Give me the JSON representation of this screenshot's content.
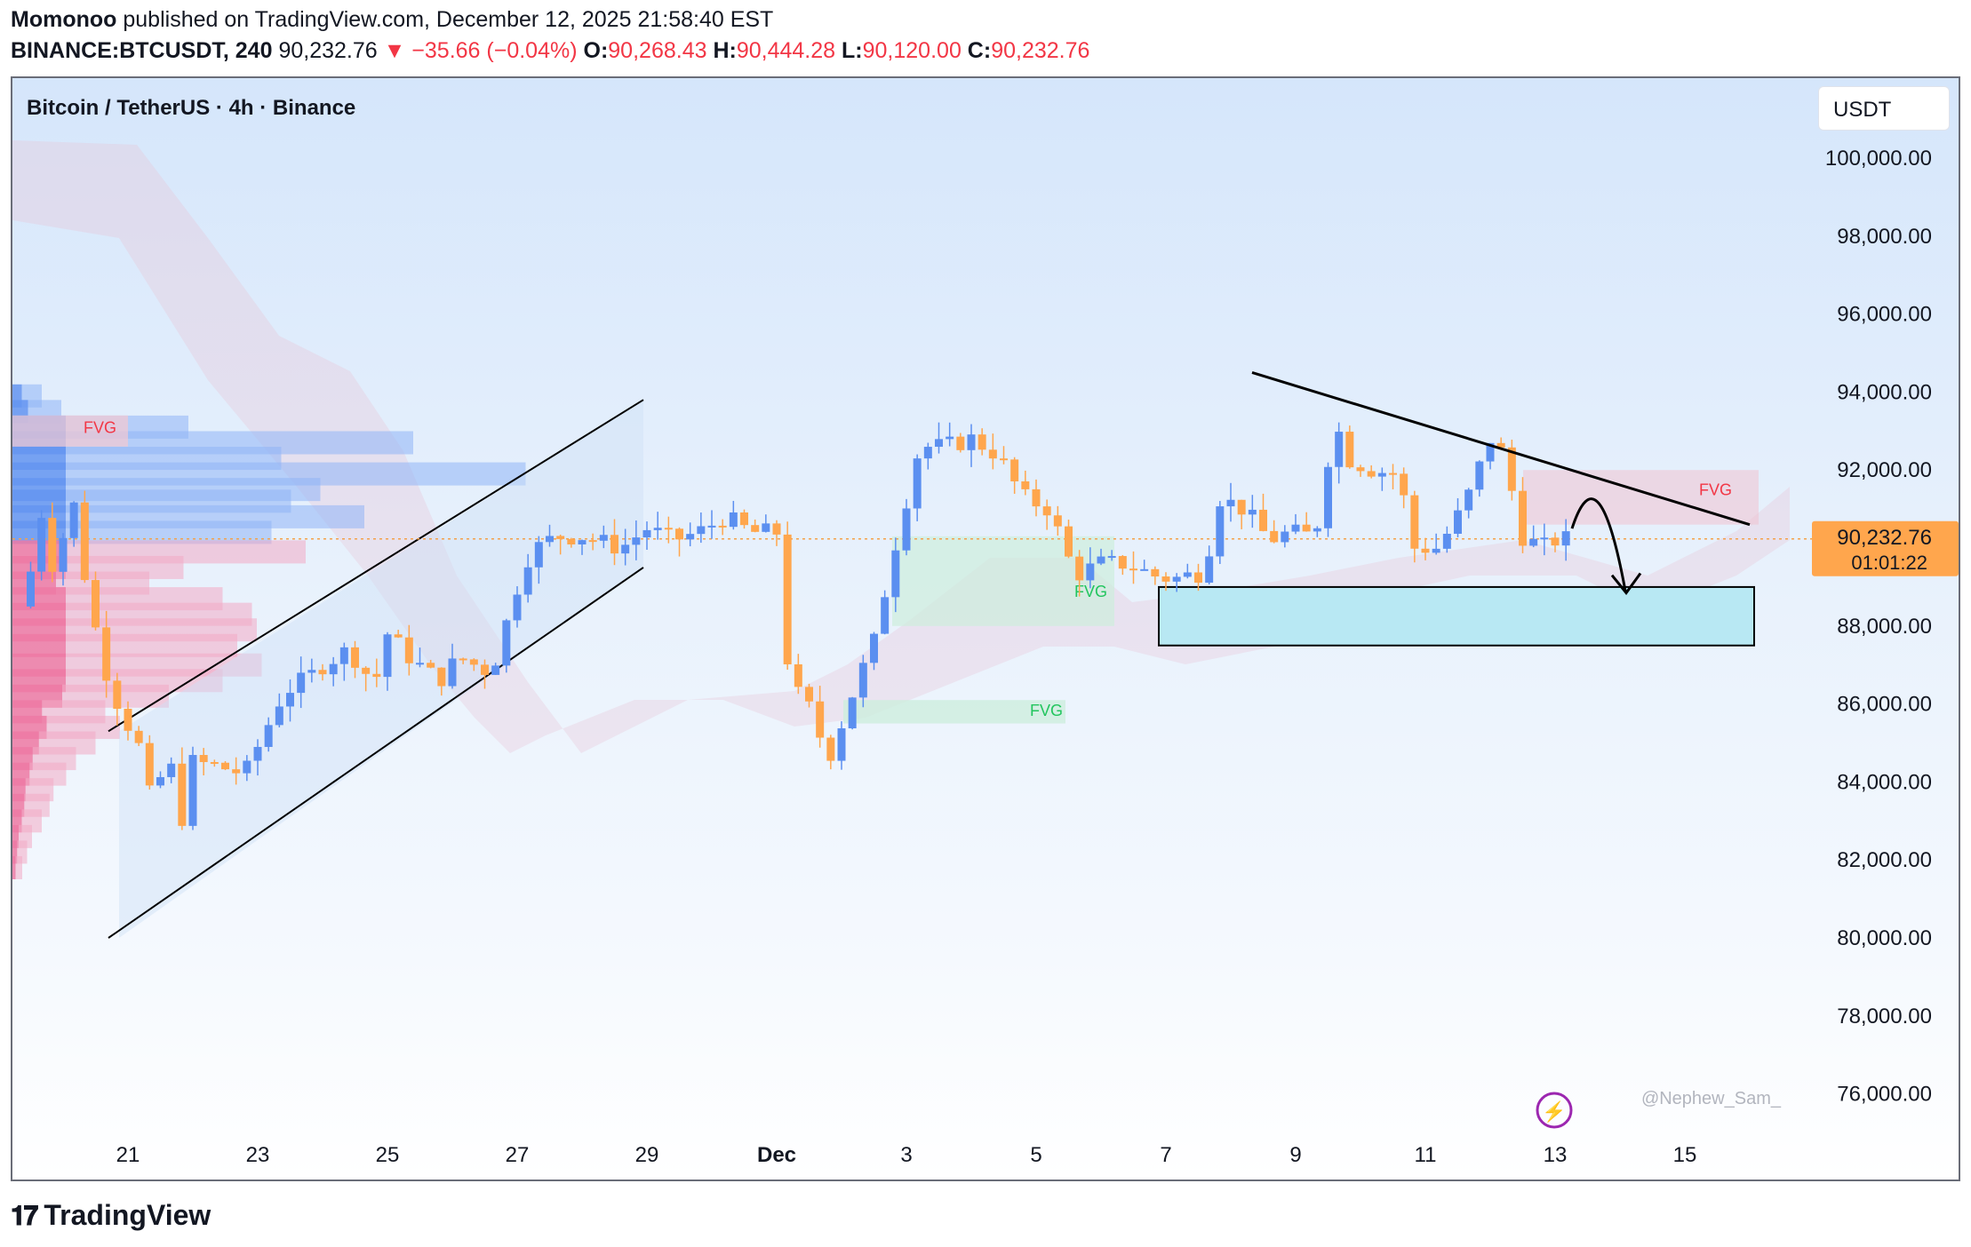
{
  "header": {
    "publisher": "Momonoo",
    "published_text": "published on TradingView.com, December 12, 2025 21:58:40 EST",
    "symbol": "BINANCE:BTCUSDT, 240",
    "price": "90,232.76",
    "change": "▼ −35.66 (−0.04%)",
    "o_label": "O:",
    "o_value": "90,268.43",
    "h_label": "H:",
    "h_value": "90,444.28",
    "l_label": "L:",
    "l_value": "90,120.00",
    "c_label": "C:",
    "c_value": "90,232.76"
  },
  "chart_title": "Bitcoin / TetherUS · 4h · Binance",
  "currency_button": "USDT",
  "watermark": "@Nephew_Sam_",
  "footer_logo": "TradingView",
  "price_tag": {
    "price": "90,232.76",
    "countdown": "01:01:22"
  },
  "colors": {
    "up": "#5b8ff0",
    "down": "#ffa64d",
    "price_tag": "#ffa64d",
    "fvg_red": "#f23645",
    "fvg_green": "#22c55e",
    "target_box": "#b8e8f3"
  },
  "chart_data": {
    "type": "candlestick",
    "title": "Bitcoin / TetherUS · 4h · Binance",
    "ylim": [
      75000,
      102500
    ],
    "y_ticks": [
      "100,000.00",
      "98,000.00",
      "96,000.00",
      "94,000.00",
      "92,000.00",
      "90,000.00",
      "88,000.00",
      "86,000.00",
      "84,000.00",
      "82,000.00",
      "80,000.00",
      "78,000.00",
      "76,000.00"
    ],
    "x_ticks": [
      {
        "label": "21",
        "day": 21
      },
      {
        "label": "23",
        "day": 23
      },
      {
        "label": "25",
        "day": 25
      },
      {
        "label": "27",
        "day": 27
      },
      {
        "label": "29",
        "day": 29
      },
      {
        "label": "Dec",
        "day": 31
      },
      {
        "label": "3",
        "day": 33
      },
      {
        "label": "5",
        "day": 35
      },
      {
        "label": "7",
        "day": 37
      },
      {
        "label": "9",
        "day": 39
      },
      {
        "label": "11",
        "day": 41
      },
      {
        "label": "13",
        "day": 43
      },
      {
        "label": "15",
        "day": 45
      }
    ],
    "last_price": 90232.76,
    "ohlc_anchors": [
      [
        19.4,
        88500
      ],
      [
        19.7,
        91200
      ],
      [
        19.9,
        88800
      ],
      [
        20.1,
        91800
      ],
      [
        20.4,
        88600
      ],
      [
        20.7,
        86600
      ],
      [
        20.9,
        85800
      ],
      [
        21.2,
        84800
      ],
      [
        21.4,
        83100
      ],
      [
        21.6,
        85100
      ],
      [
        21.8,
        82800
      ],
      [
        22.0,
        84500
      ],
      [
        22.4,
        84400
      ],
      [
        22.8,
        84200
      ],
      [
        23.0,
        84900
      ],
      [
        23.4,
        86300
      ],
      [
        23.8,
        86700
      ],
      [
        24.0,
        87000
      ],
      [
        24.4,
        87400
      ],
      [
        24.8,
        86500
      ],
      [
        25.0,
        87800
      ],
      [
        25.4,
        87100
      ],
      [
        25.8,
        86600
      ],
      [
        26.1,
        87200
      ],
      [
        26.6,
        86800
      ],
      [
        27.0,
        89000
      ],
      [
        27.2,
        89900
      ],
      [
        27.6,
        90300
      ],
      [
        28.0,
        90300
      ],
      [
        28.6,
        90000
      ],
      [
        29.0,
        90500
      ],
      [
        29.4,
        90200
      ],
      [
        29.8,
        90400
      ],
      [
        30.2,
        90800
      ],
      [
        30.6,
        90400
      ],
      [
        31.0,
        90400
      ],
      [
        31.2,
        86500
      ],
      [
        31.5,
        85900
      ],
      [
        31.8,
        84600
      ],
      [
        32.2,
        86400
      ],
      [
        32.5,
        87600
      ],
      [
        32.8,
        89900
      ],
      [
        33.2,
        92600
      ],
      [
        33.6,
        92600
      ],
      [
        34.0,
        92800
      ],
      [
        34.4,
        92400
      ],
      [
        34.8,
        91300
      ],
      [
        35.2,
        91000
      ],
      [
        35.6,
        89300
      ],
      [
        36.0,
        89600
      ],
      [
        36.4,
        89600
      ],
      [
        36.8,
        89300
      ],
      [
        37.1,
        89200
      ],
      [
        37.6,
        89400
      ],
      [
        37.8,
        91300
      ],
      [
        38.2,
        91000
      ],
      [
        38.6,
        90200
      ],
      [
        38.9,
        90400
      ],
      [
        39.3,
        90300
      ],
      [
        39.6,
        93300
      ],
      [
        39.8,
        92300
      ],
      [
        40.2,
        92000
      ],
      [
        40.6,
        91900
      ],
      [
        40.8,
        90000
      ],
      [
        41.2,
        90000
      ],
      [
        41.6,
        91100
      ],
      [
        42.0,
        92800
      ],
      [
        42.2,
        92400
      ],
      [
        42.5,
        90300
      ],
      [
        42.8,
        90000
      ],
      [
        43.0,
        90200
      ],
      [
        43.2,
        90232.76
      ]
    ],
    "annotations": [
      {
        "type": "rising_channel",
        "label": ""
      },
      {
        "type": "descending_trendline",
        "label": ""
      },
      {
        "type": "box",
        "label": "FVG",
        "zone": [
          90600,
          91900
        ],
        "color": "red"
      },
      {
        "type": "box",
        "label": "FVG",
        "zone": [
          88000,
          90300
        ],
        "color": "green"
      },
      {
        "type": "box",
        "label": "FVG",
        "zone": [
          85500,
          86100
        ],
        "color": "green"
      },
      {
        "type": "box",
        "label": "FVG",
        "zone": [
          92700,
          93400
        ],
        "color": "red"
      },
      {
        "type": "target_zone",
        "zone": [
          87500,
          89000
        ]
      }
    ],
    "grid": false,
    "volume_profile": "left side, blue above / pink below"
  }
}
